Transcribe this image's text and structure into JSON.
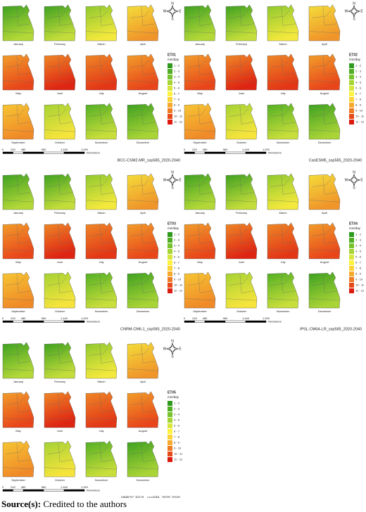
{
  "panels": [
    {
      "title": "BCC-CSM2-MR_ssp585_2020-2040",
      "legend_title": "ET#1"
    },
    {
      "title": "CanESM5_ssp585_2020-2040",
      "legend_title": "ET#2"
    },
    {
      "title": "CNRM-CM6-1_ssp585_2020-2040",
      "legend_title": "ET#3"
    },
    {
      "title": "IPSL-CM6A-LR_ssp585_2020-2040",
      "legend_title": "ET#4"
    },
    {
      "title": "MIROC-ES2L_ssp585_2020-2040",
      "legend_title": "ET#5"
    }
  ],
  "months": [
    "January",
    "February",
    "March",
    "April",
    "May",
    "June",
    "July",
    "August",
    "September",
    "October",
    "November",
    "December"
  ],
  "legend": {
    "units": "mm/day",
    "classes": [
      {
        "label": "1 - 2",
        "color": "#2f9a1e"
      },
      {
        "label": "2 - 3",
        "color": "#4fae24"
      },
      {
        "label": "3 - 4",
        "color": "#78c22c"
      },
      {
        "label": "4 - 5",
        "color": "#a6d434"
      },
      {
        "label": "5 - 6",
        "color": "#d6e63c"
      },
      {
        "label": "6 - 7",
        "color": "#fff23e"
      },
      {
        "label": "7 - 8",
        "color": "#fdd335"
      },
      {
        "label": "8 - 9",
        "color": "#f7a92c"
      },
      {
        "label": "9 - 10",
        "color": "#ef7a22"
      },
      {
        "label": "10 - 11",
        "color": "#e64a18"
      },
      {
        "label": "11 - 12",
        "color": "#dc1a10"
      }
    ]
  },
  "scale": {
    "labels": [
      "0",
      "240",
      "480",
      "960",
      "1,440",
      "1,920"
    ],
    "unit": "Kilometers"
  },
  "compass": {
    "north": "N",
    "east": "E",
    "west": "W",
    "south": "S"
  },
  "source": {
    "label": "Source(s):",
    "text": "Credited to the authors"
  }
}
